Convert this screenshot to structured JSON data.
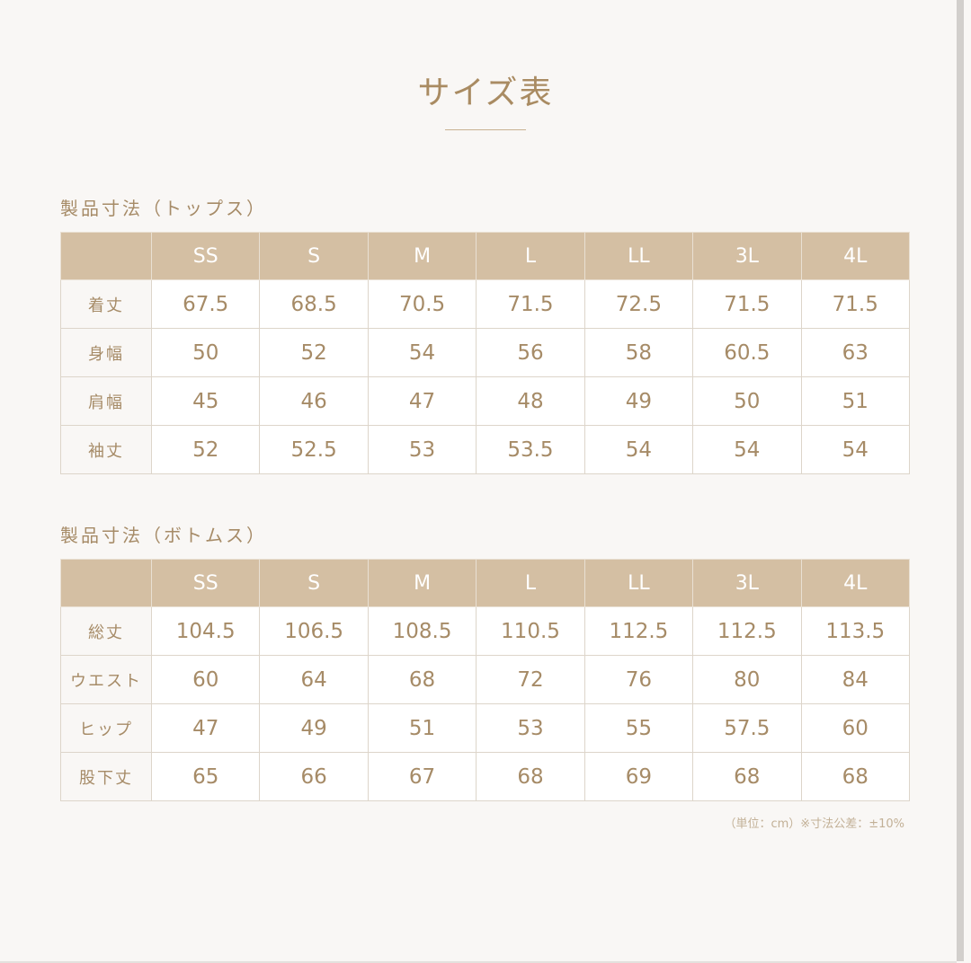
{
  "title": "サイズ表",
  "colors": {
    "accent": "#a68b67",
    "header_bg": "#d4bfa3",
    "background": "#f9f7f5"
  },
  "sizes": [
    "SS",
    "S",
    "M",
    "L",
    "LL",
    "3L",
    "4L"
  ],
  "tops": {
    "heading": "製品寸法（トップス）",
    "rows": [
      {
        "label": "着丈",
        "values": [
          "67.5",
          "68.5",
          "70.5",
          "71.5",
          "72.5",
          "71.5",
          "71.5"
        ]
      },
      {
        "label": "身幅",
        "values": [
          "50",
          "52",
          "54",
          "56",
          "58",
          "60.5",
          "63"
        ]
      },
      {
        "label": "肩幅",
        "values": [
          "45",
          "46",
          "47",
          "48",
          "49",
          "50",
          "51"
        ]
      },
      {
        "label": "袖丈",
        "values": [
          "52",
          "52.5",
          "53",
          "53.5",
          "54",
          "54",
          "54"
        ]
      }
    ]
  },
  "bottoms": {
    "heading": "製品寸法（ボトムス）",
    "rows": [
      {
        "label": "総丈",
        "values": [
          "104.5",
          "106.5",
          "108.5",
          "110.5",
          "112.5",
          "112.5",
          "113.5"
        ]
      },
      {
        "label": "ウエスト",
        "values": [
          "60",
          "64",
          "68",
          "72",
          "76",
          "80",
          "84"
        ]
      },
      {
        "label": "ヒップ",
        "values": [
          "47",
          "49",
          "51",
          "53",
          "55",
          "57.5",
          "60"
        ]
      },
      {
        "label": "股下丈",
        "values": [
          "65",
          "66",
          "67",
          "68",
          "69",
          "68",
          "68"
        ]
      }
    ]
  },
  "note": "（単位：cm）※寸法公差：±10%"
}
